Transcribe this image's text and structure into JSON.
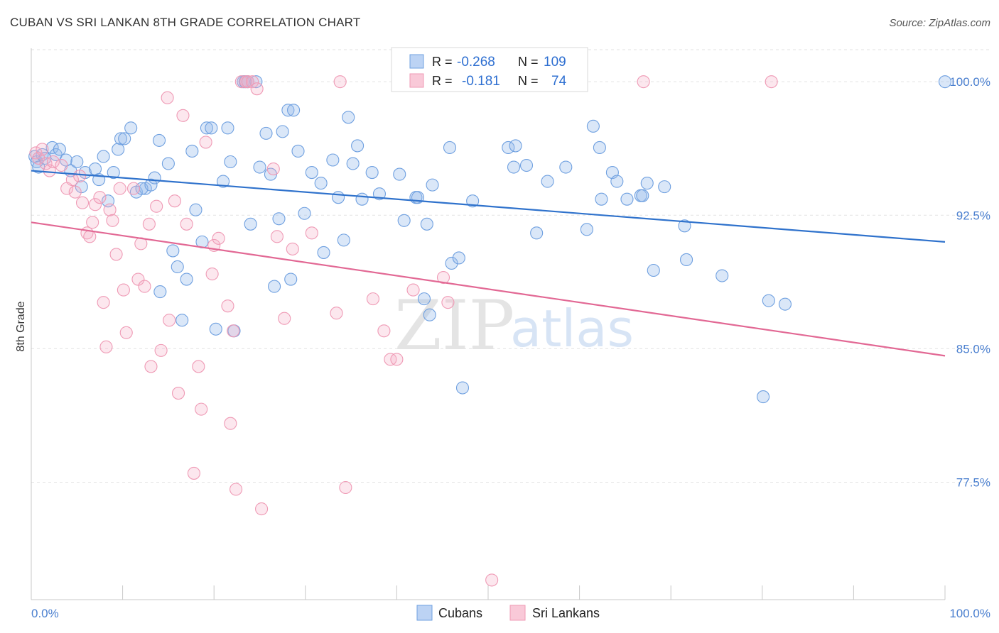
{
  "title": "CUBAN VS SRI LANKAN 8TH GRADE CORRELATION CHART",
  "source": "Source: ZipAtlas.com",
  "watermark": {
    "part1": "ZIP",
    "part2": "atlas"
  },
  "legend_box": {
    "rows": [
      {
        "r_label": "R =",
        "r_value": "-0.268",
        "n_label": "N =",
        "n_value": "109"
      },
      {
        "r_label": "R =",
        "r_value": "-0.181",
        "n_label": "N =",
        "n_value": "74"
      }
    ]
  },
  "chart_data": {
    "type": "scatter",
    "ylabel": "8th Grade",
    "xlim": [
      0,
      100
    ],
    "ylim": [
      70.9,
      101.8
    ],
    "x_tick_labels": [
      "0.0%",
      "100.0%"
    ],
    "y_ticks": [
      {
        "value": 100,
        "label": "100.0%"
      },
      {
        "value": 92.5,
        "label": "92.5%"
      },
      {
        "value": 85,
        "label": "85.0%"
      },
      {
        "value": 77.5,
        "label": "77.5%"
      }
    ],
    "grid": "horizontal dashed",
    "legend_position": "bottom",
    "colors": {
      "cubans": "#6fa0e0",
      "cubans_line": "#2f72cc",
      "srilankans": "#ef9ab5",
      "srilankans_line": "#e26894"
    },
    "series": [
      {
        "name": "Cubans",
        "trend": {
          "x": [
            0,
            100
          ],
          "y": [
            95.0,
            91.0
          ]
        },
        "points": [
          [
            0.4,
            95.8
          ],
          [
            0.6,
            95.5
          ],
          [
            0.8,
            95.2
          ],
          [
            1.2,
            95.9
          ],
          [
            1.5,
            95.7
          ],
          [
            2.3,
            96.3
          ],
          [
            2.7,
            95.9
          ],
          [
            3.1,
            96.2
          ],
          [
            3.8,
            95.6
          ],
          [
            4.3,
            95.0
          ],
          [
            5.0,
            95.5
          ],
          [
            5.5,
            94.1
          ],
          [
            5.9,
            94.9
          ],
          [
            7.4,
            94.5
          ],
          [
            7.0,
            95.1
          ],
          [
            7.9,
            95.8
          ],
          [
            8.4,
            93.3
          ],
          [
            9.0,
            94.9
          ],
          [
            9.5,
            96.2
          ],
          [
            9.8,
            96.8
          ],
          [
            10.2,
            96.8
          ],
          [
            10.9,
            97.4
          ],
          [
            11.5,
            93.8
          ],
          [
            12.5,
            94.0
          ],
          [
            12.1,
            94.0
          ],
          [
            13.1,
            94.2
          ],
          [
            13.5,
            94.6
          ],
          [
            14.0,
            96.7
          ],
          [
            14.1,
            88.2
          ],
          [
            15.0,
            95.4
          ],
          [
            15.5,
            90.5
          ],
          [
            16.0,
            89.6
          ],
          [
            16.5,
            86.6
          ],
          [
            17.0,
            88.9
          ],
          [
            17.6,
            96.1
          ],
          [
            18.0,
            92.8
          ],
          [
            18.7,
            91.0
          ],
          [
            19.2,
            97.4
          ],
          [
            19.7,
            97.4
          ],
          [
            20.2,
            86.1
          ],
          [
            21.0,
            94.4
          ],
          [
            21.5,
            97.4
          ],
          [
            21.8,
            95.5
          ],
          [
            22.2,
            86.0
          ],
          [
            23.2,
            100.0
          ],
          [
            23.4,
            100.0
          ],
          [
            23.7,
            100.0
          ],
          [
            24.0,
            92.0
          ],
          [
            24.6,
            100.0
          ],
          [
            25.0,
            95.2
          ],
          [
            25.7,
            97.1
          ],
          [
            26.2,
            94.8
          ],
          [
            26.6,
            88.5
          ],
          [
            27.1,
            92.3
          ],
          [
            27.5,
            97.2
          ],
          [
            28.1,
            98.4
          ],
          [
            28.4,
            88.9
          ],
          [
            28.7,
            98.4
          ],
          [
            29.2,
            96.1
          ],
          [
            29.9,
            92.6
          ],
          [
            30.7,
            94.9
          ],
          [
            31.7,
            94.3
          ],
          [
            32.0,
            90.4
          ],
          [
            33.0,
            95.6
          ],
          [
            33.6,
            93.5
          ],
          [
            34.2,
            91.1
          ],
          [
            34.7,
            98.0
          ],
          [
            35.2,
            95.4
          ],
          [
            35.7,
            96.4
          ],
          [
            36.2,
            93.4
          ],
          [
            37.3,
            94.9
          ],
          [
            38.1,
            93.7
          ],
          [
            40.3,
            94.8
          ],
          [
            40.8,
            92.2
          ],
          [
            42.1,
            93.5
          ],
          [
            42.3,
            93.5
          ],
          [
            43.0,
            87.8
          ],
          [
            43.3,
            92.0
          ],
          [
            43.6,
            86.9
          ],
          [
            43.9,
            94.2
          ],
          [
            45.8,
            96.3
          ],
          [
            46.0,
            89.8
          ],
          [
            46.8,
            90.1
          ],
          [
            47.2,
            82.8
          ],
          [
            48.3,
            93.3
          ],
          [
            52.2,
            96.3
          ],
          [
            52.8,
            95.2
          ],
          [
            53.0,
            96.4
          ],
          [
            54.2,
            95.3
          ],
          [
            55.3,
            91.5
          ],
          [
            56.5,
            94.4
          ],
          [
            58.5,
            95.2
          ],
          [
            60.8,
            91.7
          ],
          [
            61.5,
            97.5
          ],
          [
            62.2,
            96.3
          ],
          [
            62.4,
            93.4
          ],
          [
            63.6,
            94.9
          ],
          [
            64.1,
            94.4
          ],
          [
            65.2,
            93.4
          ],
          [
            66.7,
            93.6
          ],
          [
            66.9,
            93.6
          ],
          [
            67.4,
            94.3
          ],
          [
            68.1,
            89.4
          ],
          [
            69.3,
            94.1
          ],
          [
            71.5,
            91.9
          ],
          [
            71.7,
            90.0
          ],
          [
            75.6,
            89.1
          ],
          [
            80.1,
            82.3
          ],
          [
            80.7,
            87.7
          ],
          [
            82.5,
            87.5
          ],
          [
            100.0,
            100.0
          ]
        ]
      },
      {
        "name": "Sri Lankans",
        "trend": {
          "x": [
            0,
            100
          ],
          "y": [
            92.1,
            84.6
          ]
        },
        "points": [
          [
            0.5,
            96.0
          ],
          [
            0.8,
            95.7
          ],
          [
            1.2,
            96.2
          ],
          [
            1.6,
            95.4
          ],
          [
            2.0,
            95.0
          ],
          [
            2.4,
            95.5
          ],
          [
            3.3,
            95.3
          ],
          [
            3.9,
            94.0
          ],
          [
            4.5,
            94.5
          ],
          [
            4.8,
            93.8
          ],
          [
            5.3,
            94.7
          ],
          [
            5.6,
            93.2
          ],
          [
            6.1,
            91.5
          ],
          [
            6.4,
            91.3
          ],
          [
            6.7,
            92.1
          ],
          [
            7.0,
            93.1
          ],
          [
            7.5,
            93.5
          ],
          [
            7.9,
            87.6
          ],
          [
            8.2,
            85.1
          ],
          [
            8.6,
            92.8
          ],
          [
            8.9,
            92.2
          ],
          [
            9.3,
            90.3
          ],
          [
            9.7,
            94.0
          ],
          [
            10.1,
            88.3
          ],
          [
            10.4,
            85.9
          ],
          [
            11.2,
            94.0
          ],
          [
            11.7,
            88.9
          ],
          [
            12.0,
            90.9
          ],
          [
            12.4,
            88.5
          ],
          [
            12.9,
            92.0
          ],
          [
            13.1,
            84.0
          ],
          [
            13.7,
            93.0
          ],
          [
            14.2,
            84.9
          ],
          [
            14.9,
            99.1
          ],
          [
            15.1,
            86.6
          ],
          [
            15.7,
            93.3
          ],
          [
            16.1,
            82.5
          ],
          [
            16.6,
            98.1
          ],
          [
            17.0,
            92.0
          ],
          [
            17.8,
            78.0
          ],
          [
            18.3,
            84.0
          ],
          [
            18.6,
            81.6
          ],
          [
            19.1,
            96.6
          ],
          [
            19.8,
            89.2
          ],
          [
            20.0,
            90.8
          ],
          [
            20.5,
            91.2
          ],
          [
            21.5,
            87.4
          ],
          [
            21.8,
            80.8
          ],
          [
            22.1,
            86.0
          ],
          [
            22.4,
            77.1
          ],
          [
            23.0,
            100.0
          ],
          [
            23.5,
            100.0
          ],
          [
            23.7,
            100.0
          ],
          [
            24.2,
            100.0
          ],
          [
            24.7,
            99.6
          ],
          [
            25.2,
            76.0
          ],
          [
            26.5,
            95.1
          ],
          [
            26.9,
            91.3
          ],
          [
            27.7,
            86.7
          ],
          [
            28.6,
            90.6
          ],
          [
            30.7,
            91.5
          ],
          [
            33.4,
            87.0
          ],
          [
            33.8,
            100.0
          ],
          [
            34.4,
            77.2
          ],
          [
            37.4,
            87.8
          ],
          [
            38.6,
            86.0
          ],
          [
            39.3,
            84.4
          ],
          [
            40.0,
            84.4
          ],
          [
            41.8,
            88.3
          ],
          [
            45.1,
            89.0
          ],
          [
            45.6,
            87.6
          ],
          [
            50.4,
            72.0
          ],
          [
            67.0,
            100.0
          ],
          [
            81.0,
            100.0
          ]
        ]
      }
    ]
  },
  "bottom_legend": {
    "items": [
      {
        "label": "Cubans"
      },
      {
        "label": "Sri Lankans"
      }
    ]
  }
}
